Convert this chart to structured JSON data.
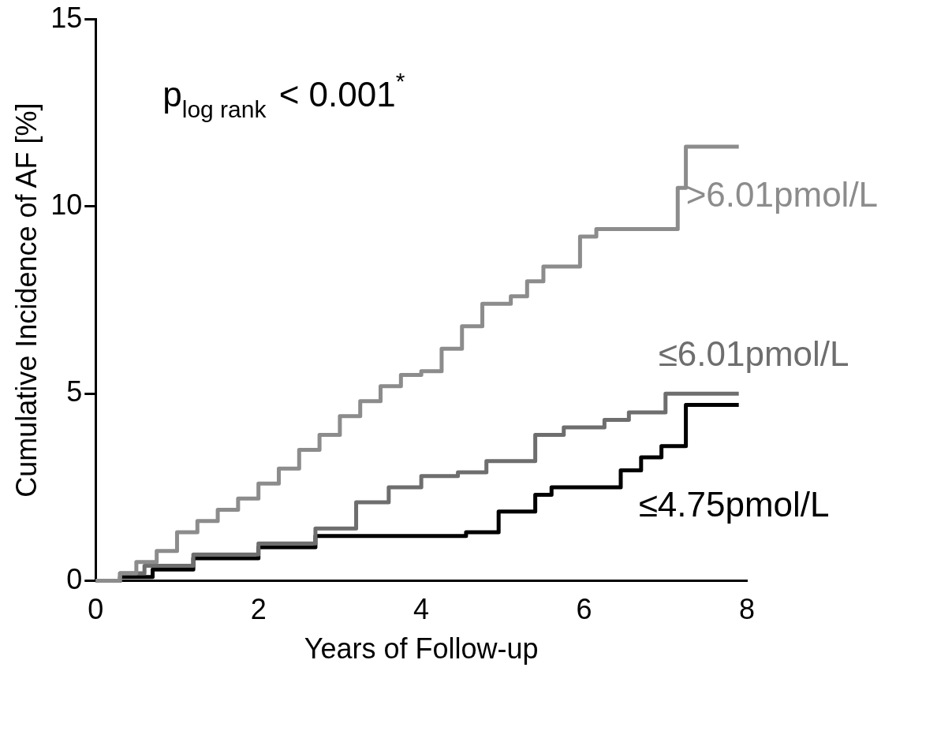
{
  "chart_data": {
    "type": "step",
    "ylabel": "Cumulative Incidence of AF [%]",
    "xlabel": "Years of Follow-up",
    "xlim": [
      0,
      8
    ],
    "xticks": [
      0,
      2,
      4,
      6,
      8
    ],
    "ylim": [
      0,
      15
    ],
    "yticks": [
      0,
      5,
      10,
      15
    ],
    "grid": false,
    "legend": false,
    "annotations": [
      "p$_{log rank}$ < 0.001$^{*}$"
    ],
    "series": [
      {
        "name": ">6.01pmol/L",
        "color": "#8c8c8c",
        "x": [
          0,
          0.3,
          0.5,
          0.75,
          1,
          1.25,
          1.5,
          1.75,
          2,
          2.25,
          2.5,
          2.75,
          3,
          3.25,
          3.5,
          3.75,
          4,
          4.25,
          4.5,
          4.75,
          5.1,
          5.3,
          5.5,
          5.95,
          6.15,
          7.15,
          7.25,
          7.9
        ],
        "values": [
          0,
          0.2,
          0.5,
          0.8,
          1.3,
          1.6,
          1.9,
          2.2,
          2.6,
          3.0,
          3.5,
          3.9,
          4.4,
          4.8,
          5.2,
          5.5,
          5.6,
          6.2,
          6.8,
          7.4,
          7.6,
          8.0,
          8.4,
          9.2,
          9.4,
          10.5,
          11.6,
          11.6
        ]
      },
      {
        "name": "≤6.01pmol/L",
        "color": "#6e6e6e",
        "x": [
          0,
          0.3,
          0.6,
          1.2,
          2.0,
          2.7,
          3.2,
          3.6,
          4.0,
          4.45,
          4.8,
          5.4,
          5.75,
          6.25,
          6.55,
          7.0,
          7.9
        ],
        "values": [
          0,
          0.2,
          0.4,
          0.7,
          1.0,
          1.4,
          2.1,
          2.5,
          2.8,
          2.9,
          3.2,
          3.9,
          4.1,
          4.3,
          4.5,
          5.0,
          5.0
        ]
      },
      {
        "name": "≤4.75pmol/L",
        "color": "#000000",
        "x": [
          0,
          0.3,
          0.7,
          1.2,
          2.0,
          2.7,
          4.55,
          4.95,
          5.4,
          5.6,
          6.45,
          6.7,
          6.95,
          7.25,
          7.9
        ],
        "values": [
          0,
          0.1,
          0.3,
          0.6,
          0.9,
          1.2,
          1.3,
          1.85,
          2.3,
          2.5,
          2.95,
          3.3,
          3.6,
          4.7,
          4.7
        ]
      }
    ]
  }
}
